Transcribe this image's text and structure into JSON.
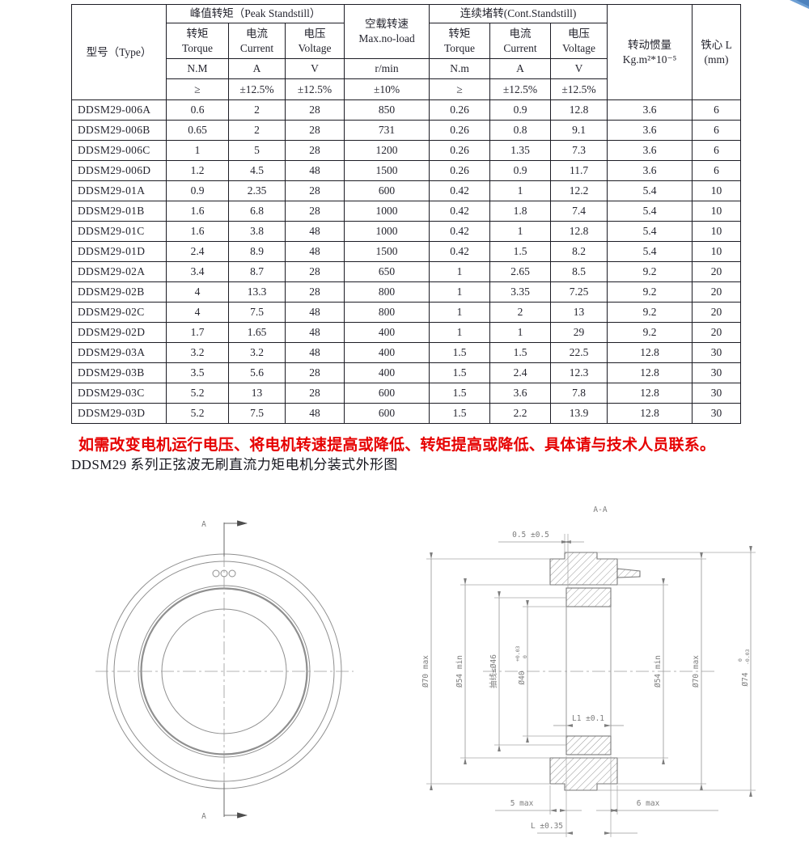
{
  "table": {
    "header": {
      "type": "型号（Type）",
      "peak_group": "峰值转矩（Peak Standstill）",
      "noload_line1": "空载转速",
      "noload_line2": "Max.no-load",
      "cont_group": "连续堵转(Cont.Standstill)",
      "inertia_line1": "转动惯量",
      "inertia_line2": "Kg.m²*10⁻⁵",
      "core_line1": "铁心 L",
      "core_line2": "(mm)",
      "torque_cn": "转矩",
      "torque_en": "Torque",
      "current_cn": "电流",
      "current_en": "Current",
      "voltage_cn": "电压",
      "voltage_en": "Voltage",
      "unit_torque_peak": "N.M",
      "unit_current": "A",
      "unit_voltage": "V",
      "unit_speed": "r/min",
      "unit_torque_cont": "N.m",
      "tol_torque": "≥",
      "tol_current": "±12.5%",
      "tol_voltage": "±12.5%",
      "tol_speed": "±10%"
    },
    "rows": [
      [
        "DDSM29-006A",
        "0.6",
        "2",
        "28",
        "850",
        "0.26",
        "0.9",
        "12.8",
        "3.6",
        "6"
      ],
      [
        "DDSM29-006B",
        "0.65",
        "2",
        "28",
        "731",
        "0.26",
        "0.8",
        "9.1",
        "3.6",
        "6"
      ],
      [
        "DDSM29-006C",
        "1",
        "5",
        "28",
        "1200",
        "0.26",
        "1.35",
        "7.3",
        "3.6",
        "6"
      ],
      [
        "DDSM29-006D",
        "1.2",
        "4.5",
        "48",
        "1500",
        "0.26",
        "0.9",
        "11.7",
        "3.6",
        "6"
      ],
      [
        "DDSM29-01A",
        "0.9",
        "2.35",
        "28",
        "600",
        "0.42",
        "1",
        "12.2",
        "5.4",
        "10"
      ],
      [
        "DDSM29-01B",
        "1.6",
        "6.8",
        "28",
        "1000",
        "0.42",
        "1.8",
        "7.4",
        "5.4",
        "10"
      ],
      [
        "DDSM29-01C",
        "1.6",
        "3.8",
        "48",
        "1000",
        "0.42",
        "1",
        "12.8",
        "5.4",
        "10"
      ],
      [
        "DDSM29-01D",
        "2.4",
        "8.9",
        "48",
        "1500",
        "0.42",
        "1.5",
        "8.2",
        "5.4",
        "10"
      ],
      [
        "DDSM29-02A",
        "3.4",
        "8.7",
        "28",
        "650",
        "1",
        "2.65",
        "8.5",
        "9.2",
        "20"
      ],
      [
        "DDSM29-02B",
        "4",
        "13.3",
        "28",
        "800",
        "1",
        "3.35",
        "7.25",
        "9.2",
        "20"
      ],
      [
        "DDSM29-02C",
        "4",
        "7.5",
        "48",
        "800",
        "1",
        "2",
        "13",
        "9.2",
        "20"
      ],
      [
        "DDSM29-02D",
        "1.7",
        "1.65",
        "48",
        "400",
        "1",
        "1",
        "29",
        "9.2",
        "20"
      ],
      [
        "DDSM29-03A",
        "3.2",
        "3.2",
        "48",
        "400",
        "1.5",
        "1.5",
        "22.5",
        "12.8",
        "30"
      ],
      [
        "DDSM29-03B",
        "3.5",
        "5.6",
        "28",
        "400",
        "1.5",
        "2.4",
        "12.3",
        "12.8",
        "30"
      ],
      [
        "DDSM29-03C",
        "5.2",
        "13",
        "28",
        "600",
        "1.5",
        "3.6",
        "7.8",
        "12.8",
        "30"
      ],
      [
        "DDSM29-03D",
        "5.2",
        "7.5",
        "48",
        "600",
        "1.5",
        "2.2",
        "13.9",
        "12.8",
        "30"
      ]
    ]
  },
  "note": "如需改变电机运行电压、将电机转速提高或降低、转矩提高或降低、具体请与技术人员联系。",
  "caption": "DDSM29 系列正弦波无刷直流力矩电机分装式外形图",
  "drawing": {
    "section_label": "A-A",
    "marker_a_top": "A",
    "marker_a_bottom": "A",
    "dims": {
      "offset_top": "0.5 ±0.5",
      "dia70_left": "Ø70 max",
      "dia54_left": "Ø54 min",
      "wire": "抽线≤Ø46",
      "dia40": "Ø40",
      "dia40_tol_upper": "+0.03",
      "dia40_tol_lower": "0",
      "dia54_right": "Ø54 min",
      "dia70_right": "Ø70 max",
      "dia74": "Ø74",
      "dia74_tol_upper": "0",
      "dia74_tol_lower": "-0.03",
      "l1": "L1 ±0.1",
      "left_overhang": "5 max",
      "right_overhang": "6 max",
      "length": "L ±0.35"
    }
  },
  "colors": {
    "note_red": "#e60000",
    "corner_blue": "#6d9fd4",
    "line_gray": "#7a7a7a"
  }
}
